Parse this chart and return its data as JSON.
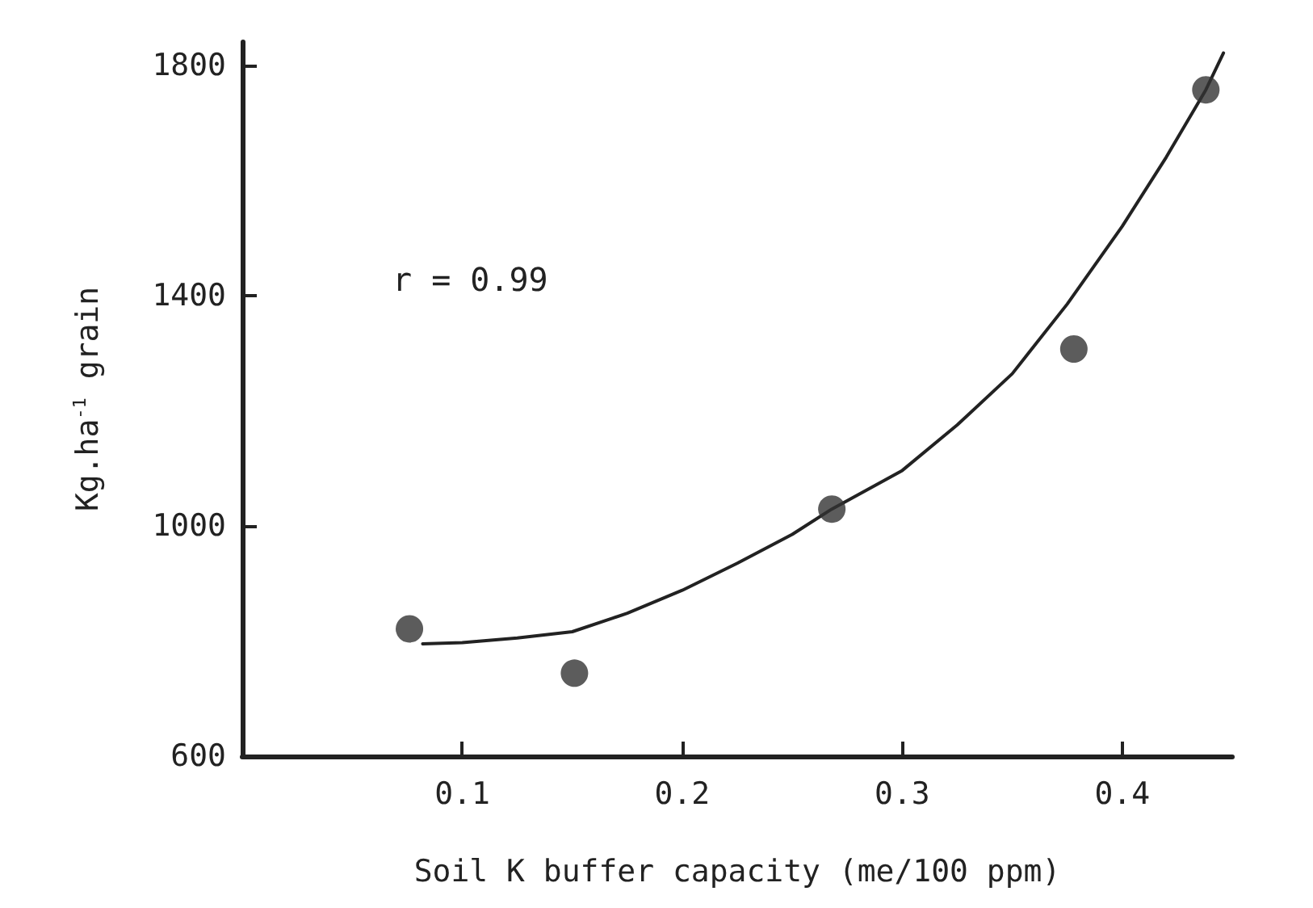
{
  "chart_data": {
    "type": "scatter",
    "xlabel": "Soil K buffer capacity (me/100 ppm)",
    "ylabel": "Kg.ha$^{-1}$ grain",
    "xlim": [
      0,
      0.45
    ],
    "ylim": [
      600,
      1840
    ],
    "xticks": [
      0.1,
      0.2,
      0.3,
      0.4
    ],
    "yticks": [
      600,
      1000,
      1400,
      1800
    ],
    "grid": false,
    "marker": "circle",
    "annotations": [
      "r = 0.99"
    ],
    "series": [
      {
        "color": "#333333",
        "x": [
          0.076,
          0.151,
          0.268,
          0.378,
          0.438
        ],
        "values": [
          821,
          744,
          1029,
          1307,
          1757
        ]
      },
      {
        "type": "line",
        "color": "#222222",
        "marker": "none",
        "line_style": "solid",
        "x": [
          0.082,
          0.1,
          0.125,
          0.15,
          0.175,
          0.2,
          0.225,
          0.25,
          0.268,
          0.3,
          0.325,
          0.35,
          0.375,
          0.4,
          0.42,
          0.438,
          0.446
        ],
        "values": [
          795,
          797,
          805,
          816,
          848,
          888,
          935,
          985,
          1029,
          1096,
          1175,
          1264,
          1385,
          1520,
          1640,
          1757,
          1821
        ]
      }
    ]
  }
}
